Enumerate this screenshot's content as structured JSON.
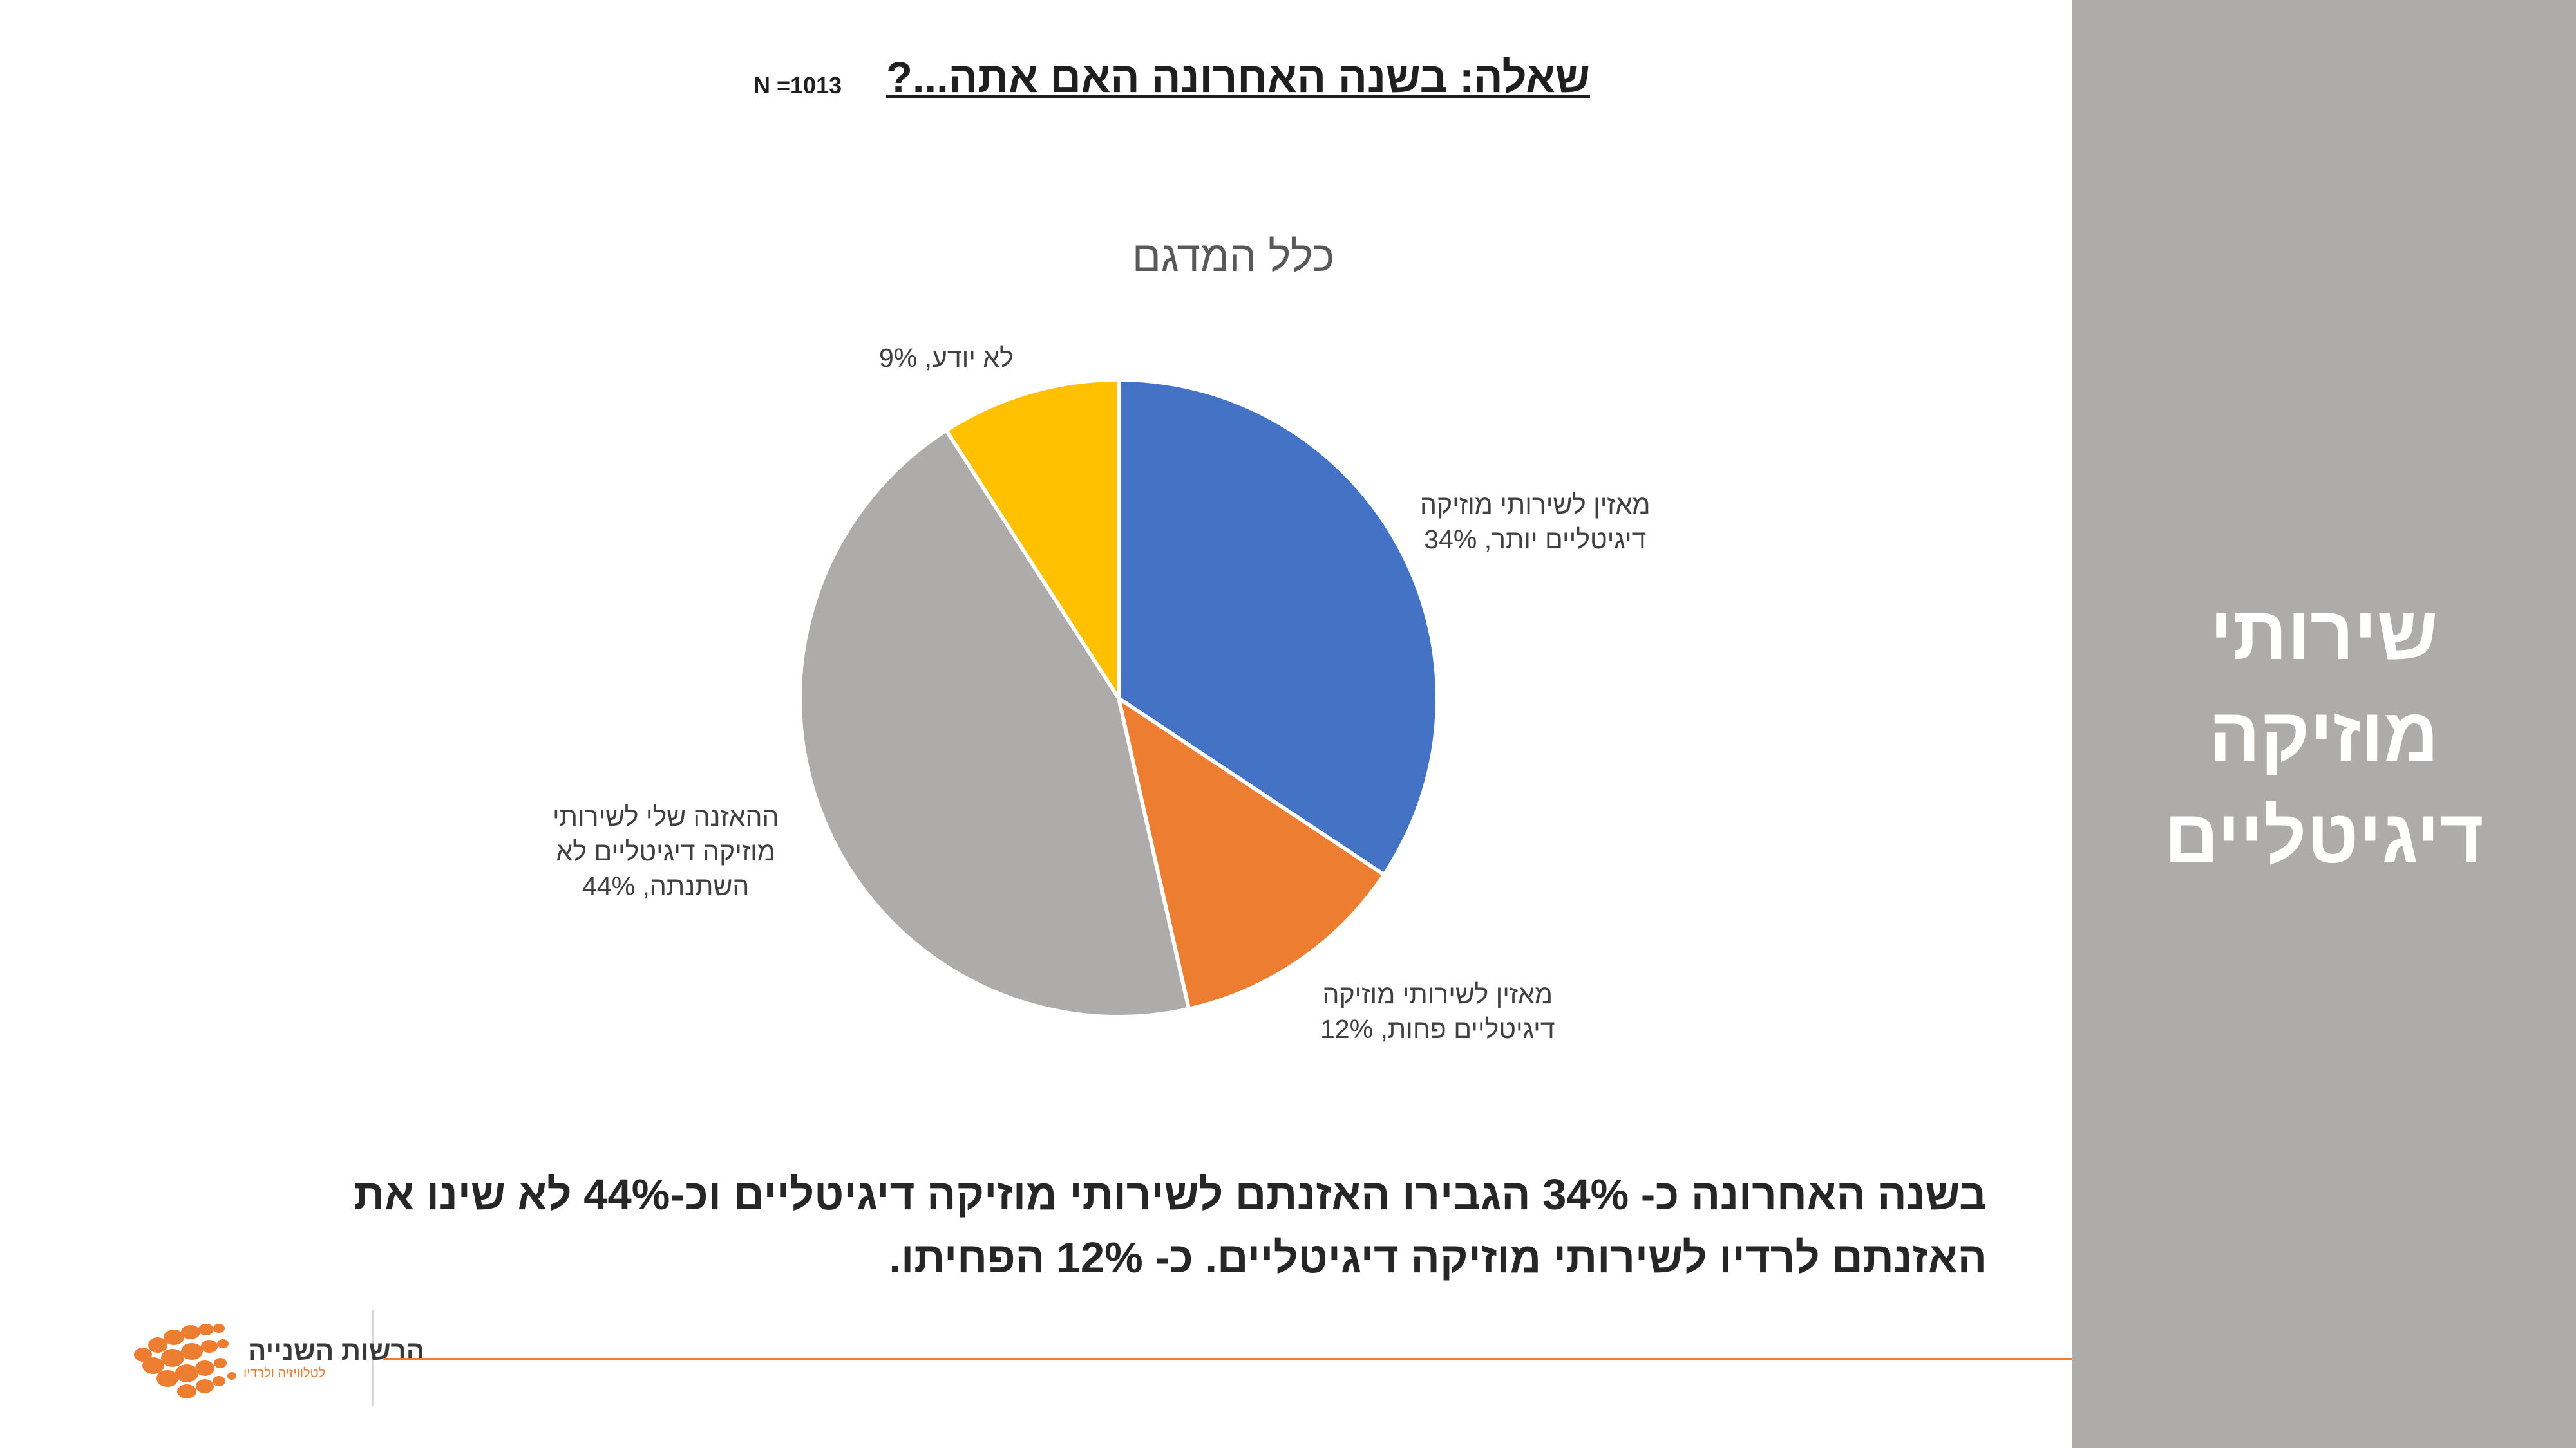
{
  "header": {
    "question": "שאלה: בשנה האחרונה האם אתה...?",
    "sample_size": "N =1013"
  },
  "sidebar": {
    "title_lines": [
      "שירותי",
      "מוזיקה",
      "דיגיטליים"
    ]
  },
  "chart_data": {
    "type": "pie",
    "title": "כלל המדגם",
    "slices": [
      {
        "label_lines": [
          "מאזין לשירותי מוזיקה",
          "דיגיטליים יותר, 34%"
        ],
        "value": 34,
        "color": "#4472c4"
      },
      {
        "label_lines": [
          "מאזין לשירותי מוזיקה",
          "דיגיטליים פחות, 12%"
        ],
        "value": 12,
        "color": "#ed7d31"
      },
      {
        "label_lines": [
          "ההאזנה שלי לשירותי",
          "מוזיקה דיגיטליים לא",
          "השתנתה, 44%"
        ],
        "value": 44,
        "color": "#aeabab"
      },
      {
        "label_lines": [
          "לא יודע, 9%"
        ],
        "value": 9,
        "color": "#ffc000"
      }
    ]
  },
  "summary": {
    "text": "בשנה האחרונה כ- 34% הגבירו האזנתם לשירותי מוזיקה דיגיטליים וכ-44% לא שינו את האזנתם לרדיו לשירותי מוזיקה דיגיטליים. כ- 12% הפחיתו."
  },
  "logo": {
    "name": "הרשות השנייה",
    "subtitle": "לטלוויזיה ולרדיו"
  }
}
